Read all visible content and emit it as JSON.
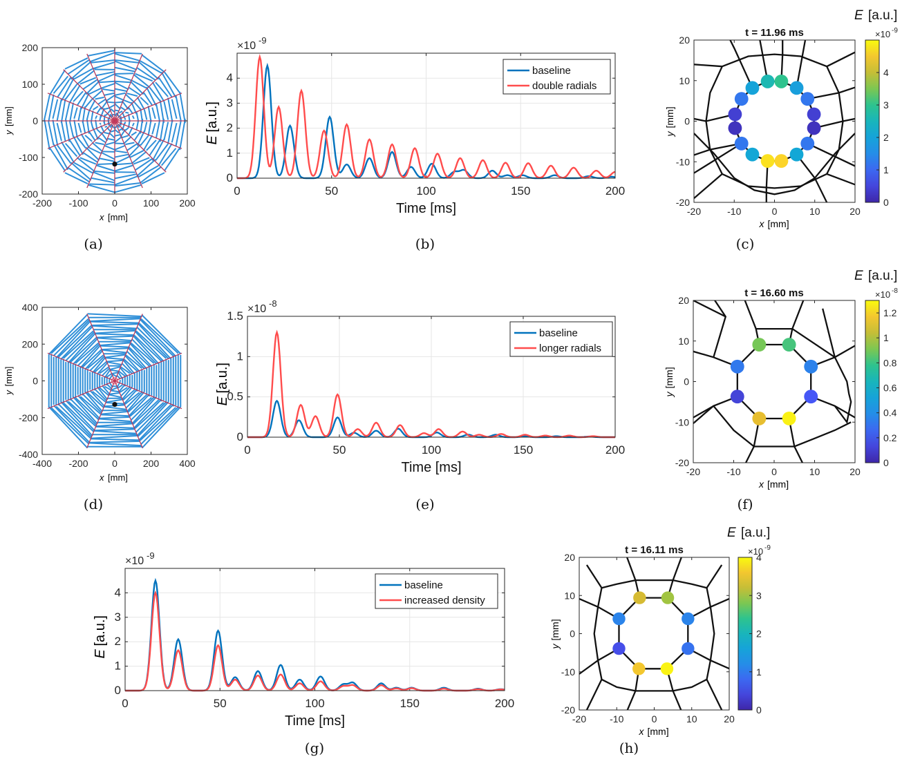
{
  "panel_labels": [
    "(a)",
    "(b)",
    "(c)",
    "(d)",
    "(e)",
    "(f)",
    "(g)",
    "(h)"
  ],
  "colors": {
    "baseline": "#0072BD",
    "variant": "#FF4C4C",
    "web_lines": "#2F8FD8",
    "radials": "#B53A5C",
    "network": "#111111"
  },
  "chart_data": [
    {
      "id": "a",
      "type": "scatter",
      "title": "",
      "xlabel_var": "x",
      "ylabel_var": "y",
      "unit": "[mm]",
      "xlim": [
        -200,
        200
      ],
      "ylim": [
        -200,
        200
      ],
      "xticks": [
        "-200",
        "-100",
        "0",
        "100",
        "200"
      ],
      "yticks": [
        "200",
        "100",
        "0",
        "-100",
        "-200"
      ],
      "web": {
        "radials": 16,
        "spiral_turns": 16,
        "hub_radius": 12,
        "outer_radius": 200
      },
      "marker": {
        "x": 0,
        "y": -118
      }
    },
    {
      "id": "b",
      "type": "line",
      "xlabel": "Time [ms]",
      "ylabel_var": "E",
      "ylabel_unit": "[a.u.]",
      "exponent_base": "×10",
      "exponent_power": "-9",
      "xlim": [
        0,
        200
      ],
      "ylim": [
        0,
        5
      ],
      "xticks": [
        "0",
        "50",
        "100",
        "150",
        "200"
      ],
      "yticks": [
        "0",
        "1",
        "2",
        "3",
        "4"
      ],
      "legend_position": "top-right",
      "series": [
        {
          "name": "baseline",
          "color": "#0072BD",
          "peaks": [
            [
              16,
              4.5
            ],
            [
              28,
              2.1
            ],
            [
              49,
              2.45
            ],
            [
              58,
              0.55
            ],
            [
              70,
              0.8
            ],
            [
              82,
              1.05
            ],
            [
              92,
              0.45
            ],
            [
              103,
              0.58
            ],
            [
              115,
              0.25
            ],
            [
              120,
              0.32
            ],
            [
              135,
              0.3
            ],
            [
              143,
              0.12
            ],
            [
              151,
              0.12
            ],
            [
              168,
              0.12
            ],
            [
              186,
              0.08
            ],
            [
              198,
              0.06
            ]
          ]
        },
        {
          "name": "double radials",
          "color": "#FF4C4C",
          "peaks": [
            [
              12,
              4.85
            ],
            [
              22,
              2.85
            ],
            [
              34,
              3.5
            ],
            [
              46,
              1.9
            ],
            [
              58,
              2.15
            ],
            [
              70,
              1.55
            ],
            [
              82,
              1.35
            ],
            [
              94,
              1.2
            ],
            [
              106,
              0.98
            ],
            [
              118,
              0.8
            ],
            [
              130,
              0.72
            ],
            [
              142,
              0.62
            ],
            [
              154,
              0.6
            ],
            [
              166,
              0.5
            ],
            [
              178,
              0.42
            ],
            [
              190,
              0.3
            ],
            [
              200,
              0.25
            ]
          ]
        }
      ]
    },
    {
      "id": "c",
      "type": "scatter",
      "title": "t = 11.96 ms",
      "xlabel_var": "x",
      "ylabel_var": "y",
      "unit": "[mm]",
      "xlim": [
        -20,
        20
      ],
      "ylim": [
        -20,
        20
      ],
      "xticks": [
        "-20",
        "-10",
        "0",
        "10",
        "20"
      ],
      "yticks": [
        "20",
        "10",
        "0",
        "-10",
        "-20"
      ],
      "colorbar": {
        "label_var": "E",
        "label_unit": "[a.u.]",
        "exponent_base": "×10",
        "exponent_power": "-9",
        "min": 0,
        "max": 5,
        "ticks": [
          "0",
          "1",
          "2",
          "3",
          "4"
        ]
      },
      "nodes": [
        {
          "x": -1.7,
          "y": 9.8,
          "value": 2.6
        },
        {
          "x": 1.7,
          "y": 9.8,
          "value": 3.0
        },
        {
          "x": 5.5,
          "y": 8.2,
          "value": 1.9
        },
        {
          "x": 8.2,
          "y": 5.5,
          "value": 1.2
        },
        {
          "x": 9.8,
          "y": 1.7,
          "value": 0.4
        },
        {
          "x": 9.8,
          "y": -1.7,
          "value": 0.2
        },
        {
          "x": 8.2,
          "y": -5.5,
          "value": 1.2
        },
        {
          "x": 5.5,
          "y": -8.2,
          "value": 2.1
        },
        {
          "x": 1.7,
          "y": -9.8,
          "value": 4.7
        },
        {
          "x": -1.7,
          "y": -9.8,
          "value": 4.8
        },
        {
          "x": -5.5,
          "y": -8.2,
          "value": 2.1
        },
        {
          "x": -8.2,
          "y": -5.5,
          "value": 1.2
        },
        {
          "x": -9.8,
          "y": -1.7,
          "value": 0.2
        },
        {
          "x": -9.8,
          "y": 1.7,
          "value": 0.4
        },
        {
          "x": -8.2,
          "y": 5.5,
          "value": 1.2
        },
        {
          "x": -5.5,
          "y": 8.2,
          "value": 2.0
        }
      ]
    },
    {
      "id": "d",
      "type": "scatter",
      "title": "",
      "xlabel_var": "x",
      "ylabel_var": "y",
      "unit": "[mm]",
      "xlim": [
        -400,
        400
      ],
      "ylim": [
        -400,
        400
      ],
      "xticks": [
        "-400",
        "-200",
        "0",
        "200",
        "400"
      ],
      "yticks": [
        "400",
        "200",
        "0",
        "-200",
        "-400"
      ],
      "web": {
        "radials": 8,
        "spiral_turns": 26,
        "hub_radius": 25,
        "outer_radius": 400
      },
      "marker": {
        "x": 0,
        "y": -128
      }
    },
    {
      "id": "e",
      "type": "line",
      "xlabel": "Time [ms]",
      "ylabel_var": "E",
      "ylabel_unit": "[a.u.]",
      "exponent_base": "×10",
      "exponent_power": "-8",
      "xlim": [
        0,
        200
      ],
      "ylim": [
        0,
        1.5
      ],
      "xticks": [
        "0",
        "50",
        "100",
        "150",
        "200"
      ],
      "yticks": [
        "0",
        "0.5",
        "1",
        "1.5"
      ],
      "legend_position": "top-right",
      "series": [
        {
          "name": "baseline",
          "color": "#0072BD",
          "peaks": [
            [
              16,
              0.45
            ],
            [
              28,
              0.21
            ],
            [
              49,
              0.245
            ],
            [
              58,
              0.055
            ],
            [
              70,
              0.08
            ],
            [
              82,
              0.105
            ],
            [
              103,
              0.058
            ],
            [
              120,
              0.032
            ],
            [
              135,
              0.03
            ],
            [
              151,
              0.012
            ],
            [
              168,
              0.012
            ],
            [
              186,
              0.008
            ]
          ]
        },
        {
          "name": "longer radials",
          "color": "#FF4C4C",
          "peaks": [
            [
              16,
              1.3
            ],
            [
              29,
              0.4
            ],
            [
              37,
              0.26
            ],
            [
              49,
              0.53
            ],
            [
              60,
              0.1
            ],
            [
              70,
              0.18
            ],
            [
              83,
              0.15
            ],
            [
              96,
              0.05
            ],
            [
              104,
              0.1
            ],
            [
              117,
              0.07
            ],
            [
              126,
              0.03
            ],
            [
              138,
              0.04
            ],
            [
              151,
              0.03
            ],
            [
              162,
              0.02
            ],
            [
              175,
              0.02
            ],
            [
              188,
              0.012
            ]
          ]
        }
      ]
    },
    {
      "id": "f",
      "type": "scatter",
      "title": "t = 16.60 ms",
      "xlabel_var": "x",
      "ylabel_var": "y",
      "unit": "[mm]",
      "xlim": [
        -20,
        20
      ],
      "ylim": [
        -20,
        20
      ],
      "xticks": [
        "-20",
        "-10",
        "0",
        "10",
        "20"
      ],
      "yticks": [
        "20",
        "10",
        "0",
        "-10",
        "-20"
      ],
      "colorbar": {
        "label_var": "E",
        "label_unit": "[a.u.]",
        "exponent_base": "×10",
        "exponent_power": "-8",
        "min": 0,
        "max": 1.3,
        "ticks": [
          "0",
          "0.2",
          "0.4",
          "0.6",
          "0.8",
          "1",
          "1.2"
        ]
      },
      "nodes": [
        {
          "x": -3.7,
          "y": 9.1,
          "value": 0.9
        },
        {
          "x": 3.7,
          "y": 9.1,
          "value": 0.82
        },
        {
          "x": 9.1,
          "y": 3.7,
          "value": 0.35
        },
        {
          "x": 9.1,
          "y": -3.7,
          "value": 0.2
        },
        {
          "x": 3.7,
          "y": -9.1,
          "value": 1.28
        },
        {
          "x": -3.7,
          "y": -9.1,
          "value": 1.12
        },
        {
          "x": -9.1,
          "y": -3.7,
          "value": 0.12
        },
        {
          "x": -9.1,
          "y": 3.7,
          "value": 0.32
        }
      ]
    },
    {
      "id": "g",
      "type": "line",
      "xlabel": "Time [ms]",
      "ylabel_var": "E",
      "ylabel_unit": "[a.u.]",
      "exponent_base": "×10",
      "exponent_power": "-9",
      "xlim": [
        0,
        200
      ],
      "ylim": [
        0,
        5
      ],
      "xticks": [
        "0",
        "50",
        "100",
        "150",
        "200"
      ],
      "yticks": [
        "0",
        "1",
        "2",
        "3",
        "4"
      ],
      "legend_position": "top-right",
      "series": [
        {
          "name": "baseline",
          "color": "#0072BD",
          "peaks": [
            [
              16,
              4.5
            ],
            [
              28,
              2.1
            ],
            [
              49,
              2.45
            ],
            [
              58,
              0.55
            ],
            [
              70,
              0.8
            ],
            [
              82,
              1.05
            ],
            [
              92,
              0.45
            ],
            [
              103,
              0.58
            ],
            [
              115,
              0.25
            ],
            [
              120,
              0.32
            ],
            [
              135,
              0.3
            ],
            [
              143,
              0.12
            ],
            [
              151,
              0.12
            ],
            [
              168,
              0.12
            ],
            [
              186,
              0.08
            ],
            [
              198,
              0.06
            ]
          ]
        },
        {
          "name": "increased density",
          "color": "#FF4C4C",
          "peaks": [
            [
              16,
              4.0
            ],
            [
              28,
              1.65
            ],
            [
              49,
              1.85
            ],
            [
              58,
              0.45
            ],
            [
              70,
              0.62
            ],
            [
              82,
              0.66
            ],
            [
              92,
              0.3
            ],
            [
              103,
              0.38
            ],
            [
              115,
              0.18
            ],
            [
              120,
              0.22
            ],
            [
              135,
              0.22
            ],
            [
              143,
              0.09
            ],
            [
              151,
              0.1
            ],
            [
              168,
              0.08
            ],
            [
              186,
              0.06
            ],
            [
              198,
              0.05
            ]
          ]
        }
      ]
    },
    {
      "id": "h",
      "type": "scatter",
      "title": "t = 16.11 ms",
      "xlabel_var": "x",
      "ylabel_var": "y",
      "unit": "[mm]",
      "xlim": [
        -20,
        20
      ],
      "ylim": [
        -20,
        20
      ],
      "xticks": [
        "-20",
        "-10",
        "0",
        "10",
        "20"
      ],
      "yticks": [
        "20",
        "10",
        "0",
        "-10",
        "-20"
      ],
      "colorbar": {
        "label_var": "E",
        "label_unit": "[a.u.]",
        "exponent_base": "×10",
        "exponent_power": "-9",
        "min": 0,
        "max": 4,
        "ticks": [
          "0",
          "1",
          "2",
          "3",
          "4"
        ]
      },
      "nodes": [
        {
          "x": -3.9,
          "y": 9.4,
          "value": 3.3
        },
        {
          "x": 3.6,
          "y": 9.4,
          "value": 3.0
        },
        {
          "x": 9.0,
          "y": 3.9,
          "value": 1.1
        },
        {
          "x": 9.0,
          "y": -3.9,
          "value": 0.9
        },
        {
          "x": 3.4,
          "y": -9.2,
          "value": 3.95
        },
        {
          "x": -4.1,
          "y": -9.2,
          "value": 3.6
        },
        {
          "x": -9.4,
          "y": -3.9,
          "value": 0.5
        },
        {
          "x": -9.4,
          "y": 3.9,
          "value": 1.1
        }
      ]
    }
  ]
}
